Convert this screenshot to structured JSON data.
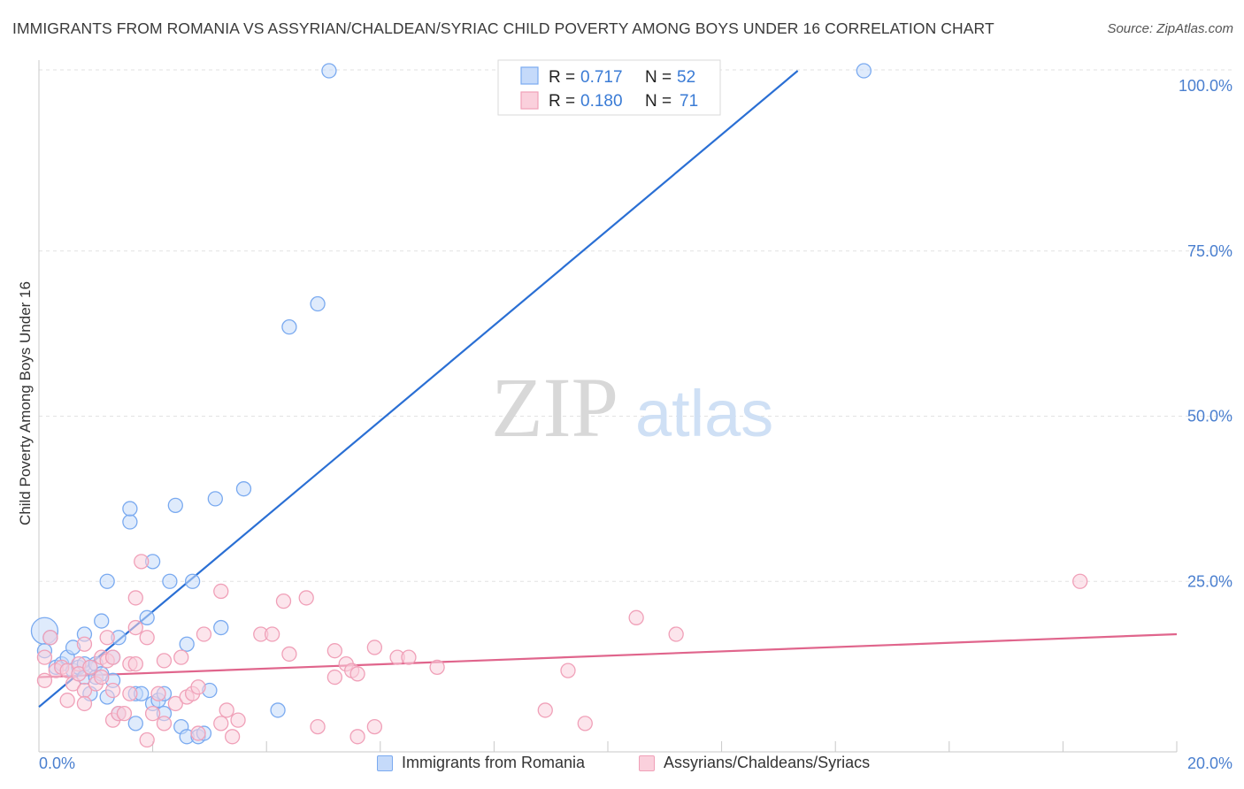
{
  "chart_data": {
    "type": "scatter",
    "title": "IMMIGRANTS FROM ROMANIA VS ASSYRIAN/CHALDEAN/SYRIAC CHILD POVERTY AMONG BOYS UNDER 16 CORRELATION CHART",
    "source": "Source: ZipAtlas.com",
    "ylabel": "Child Poverty Among Boys Under 16",
    "xlabel": "",
    "xlim": [
      0,
      20
    ],
    "ylim": [
      0,
      100
    ],
    "x_ticks": [
      {
        "value": 0,
        "label": "0.0%"
      },
      {
        "value": 20,
        "label": "20.0%"
      }
    ],
    "y_ticks": [
      {
        "value": 25,
        "label": "25.0%"
      },
      {
        "value": 50,
        "label": "50.0%"
      },
      {
        "value": 75,
        "label": "75.0%"
      },
      {
        "value": 100,
        "label": "100.0%"
      }
    ],
    "watermark": {
      "part1": "ZIP",
      "part2": "atlas"
    },
    "legend": [
      {
        "r_label": "R =",
        "r_value": "0.717",
        "n_label": "N =",
        "n_value": "52"
      },
      {
        "r_label": "R =",
        "r_value": "0.180",
        "n_label": "N =",
        "n_value": "71"
      }
    ],
    "series": [
      {
        "name": "Immigrants from Romania",
        "color": "#7aaaf0",
        "fill": "#c5dafa",
        "line_color": "#2a6fd4",
        "trend": {
          "x0": 0,
          "y0": 6.0,
          "x1": 13.3,
          "y1": 102
        },
        "points": [
          {
            "x": 0.1,
            "y": 17.5,
            "big": true
          },
          {
            "x": 0.1,
            "y": 14.5
          },
          {
            "x": 0.2,
            "y": 16.5
          },
          {
            "x": 0.3,
            "y": 12.0
          },
          {
            "x": 0.4,
            "y": 12.5
          },
          {
            "x": 0.5,
            "y": 13.5
          },
          {
            "x": 0.6,
            "y": 15.0
          },
          {
            "x": 0.6,
            "y": 11.5
          },
          {
            "x": 0.7,
            "y": 12.0
          },
          {
            "x": 0.8,
            "y": 10.5
          },
          {
            "x": 0.8,
            "y": 12.5
          },
          {
            "x": 0.9,
            "y": 8.0
          },
          {
            "x": 0.8,
            "y": 17.0
          },
          {
            "x": 0.9,
            "y": 12.0
          },
          {
            "x": 1.0,
            "y": 12.5
          },
          {
            "x": 1.0,
            "y": 10.5
          },
          {
            "x": 1.1,
            "y": 11.0
          },
          {
            "x": 1.1,
            "y": 19.0
          },
          {
            "x": 1.2,
            "y": 7.5
          },
          {
            "x": 1.2,
            "y": 25.0
          },
          {
            "x": 1.3,
            "y": 13.5
          },
          {
            "x": 1.3,
            "y": 10.0
          },
          {
            "x": 1.4,
            "y": 16.5
          },
          {
            "x": 1.4,
            "y": 5.0
          },
          {
            "x": 1.6,
            "y": 34.0
          },
          {
            "x": 1.6,
            "y": 36.0
          },
          {
            "x": 1.7,
            "y": 3.5
          },
          {
            "x": 1.7,
            "y": 8.0
          },
          {
            "x": 1.8,
            "y": 8.0
          },
          {
            "x": 1.9,
            "y": 19.5
          },
          {
            "x": 2.0,
            "y": 6.5
          },
          {
            "x": 2.0,
            "y": 28.0
          },
          {
            "x": 2.1,
            "y": 7.0
          },
          {
            "x": 2.2,
            "y": 8.0
          },
          {
            "x": 2.2,
            "y": 5.0
          },
          {
            "x": 2.3,
            "y": 25.0
          },
          {
            "x": 2.4,
            "y": 36.5
          },
          {
            "x": 2.5,
            "y": 3.0
          },
          {
            "x": 2.6,
            "y": 15.5
          },
          {
            "x": 2.6,
            "y": 1.5
          },
          {
            "x": 2.7,
            "y": 25.0
          },
          {
            "x": 2.8,
            "y": 1.5
          },
          {
            "x": 2.9,
            "y": 2.0
          },
          {
            "x": 3.0,
            "y": 8.5
          },
          {
            "x": 3.1,
            "y": 37.5
          },
          {
            "x": 3.2,
            "y": 18.0
          },
          {
            "x": 3.6,
            "y": 39.0
          },
          {
            "x": 4.2,
            "y": 5.5
          },
          {
            "x": 4.4,
            "y": 63.5
          },
          {
            "x": 4.9,
            "y": 67.0
          },
          {
            "x": 5.1,
            "y": 100.5
          },
          {
            "x": 14.5,
            "y": 100.5
          }
        ]
      },
      {
        "name": "Assyrians/Chaldeans/Syriacs",
        "color": "#f0a0b8",
        "fill": "#fad0dc",
        "line_color": "#e0658c",
        "trend": {
          "x0": 0,
          "y0": 10.5,
          "x1": 20,
          "y1": 17.0
        },
        "points": [
          {
            "x": 0.1,
            "y": 13.5
          },
          {
            "x": 0.1,
            "y": 10.0
          },
          {
            "x": 0.2,
            "y": 16.5
          },
          {
            "x": 0.3,
            "y": 11.5
          },
          {
            "x": 0.4,
            "y": 12.0
          },
          {
            "x": 0.5,
            "y": 11.5
          },
          {
            "x": 0.5,
            "y": 7.0
          },
          {
            "x": 0.6,
            "y": 9.5
          },
          {
            "x": 0.7,
            "y": 12.5
          },
          {
            "x": 0.7,
            "y": 11.0
          },
          {
            "x": 0.8,
            "y": 15.5
          },
          {
            "x": 0.8,
            "y": 8.5
          },
          {
            "x": 0.8,
            "y": 6.5
          },
          {
            "x": 0.9,
            "y": 12.0
          },
          {
            "x": 1.0,
            "y": 9.5
          },
          {
            "x": 1.1,
            "y": 10.5
          },
          {
            "x": 1.1,
            "y": 13.5
          },
          {
            "x": 1.2,
            "y": 16.5
          },
          {
            "x": 1.2,
            "y": 13.0
          },
          {
            "x": 1.3,
            "y": 8.5
          },
          {
            "x": 1.3,
            "y": 13.5
          },
          {
            "x": 1.3,
            "y": 4.0
          },
          {
            "x": 1.4,
            "y": 5.0
          },
          {
            "x": 1.5,
            "y": 5.0
          },
          {
            "x": 1.6,
            "y": 12.5
          },
          {
            "x": 1.6,
            "y": 8.0
          },
          {
            "x": 1.7,
            "y": 22.5
          },
          {
            "x": 1.7,
            "y": 12.5
          },
          {
            "x": 1.7,
            "y": 18.0
          },
          {
            "x": 1.8,
            "y": 28.0
          },
          {
            "x": 1.9,
            "y": 16.5
          },
          {
            "x": 1.9,
            "y": 1.0
          },
          {
            "x": 2.0,
            "y": 5.0
          },
          {
            "x": 2.1,
            "y": 8.0
          },
          {
            "x": 2.2,
            "y": 3.5
          },
          {
            "x": 2.2,
            "y": 13.0
          },
          {
            "x": 2.4,
            "y": 6.5
          },
          {
            "x": 2.5,
            "y": 13.5
          },
          {
            "x": 2.6,
            "y": 7.5
          },
          {
            "x": 2.7,
            "y": 8.0
          },
          {
            "x": 2.8,
            "y": 9.0
          },
          {
            "x": 2.8,
            "y": 2.0
          },
          {
            "x": 2.9,
            "y": 17.0
          },
          {
            "x": 3.2,
            "y": 3.5
          },
          {
            "x": 3.2,
            "y": 23.5
          },
          {
            "x": 3.3,
            "y": 5.5
          },
          {
            "x": 3.4,
            "y": 1.5
          },
          {
            "x": 3.5,
            "y": 4.0
          },
          {
            "x": 3.9,
            "y": 17.0
          },
          {
            "x": 4.1,
            "y": 17.0
          },
          {
            "x": 4.3,
            "y": 22.0
          },
          {
            "x": 4.4,
            "y": 14.0
          },
          {
            "x": 4.7,
            "y": 22.5
          },
          {
            "x": 4.9,
            "y": 3.0
          },
          {
            "x": 5.2,
            "y": 14.5
          },
          {
            "x": 5.2,
            "y": 10.5
          },
          {
            "x": 5.4,
            "y": 12.5
          },
          {
            "x": 5.5,
            "y": 11.5
          },
          {
            "x": 5.6,
            "y": 1.5
          },
          {
            "x": 5.6,
            "y": 11.0
          },
          {
            "x": 5.9,
            "y": 3.0
          },
          {
            "x": 5.9,
            "y": 15.0
          },
          {
            "x": 6.3,
            "y": 13.5
          },
          {
            "x": 6.5,
            "y": 13.5
          },
          {
            "x": 7.0,
            "y": 12.0
          },
          {
            "x": 8.9,
            "y": 5.5
          },
          {
            "x": 9.3,
            "y": 11.5
          },
          {
            "x": 9.6,
            "y": 3.5
          },
          {
            "x": 10.5,
            "y": 19.5
          },
          {
            "x": 11.2,
            "y": 17.0
          },
          {
            "x": 18.3,
            "y": 25.0
          }
        ]
      }
    ]
  }
}
